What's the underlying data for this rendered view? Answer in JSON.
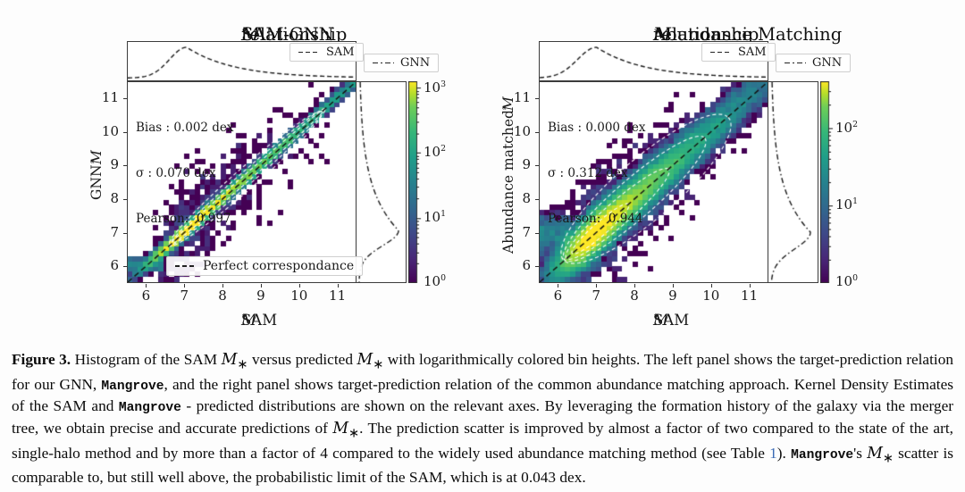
{
  "colors": {
    "link": "#3b6bb5",
    "viridis_low": "#440154",
    "viridis_high": "#fde725",
    "contour": "#ffffff",
    "line": "#141414"
  },
  "chart_data": [
    {
      "type": "heatmap",
      "title_segments": [
        {
          "t": "SAM-GNN ",
          "s": "n"
        },
        {
          "t": "M*",
          "s": "math"
        },
        {
          "t": " relationship",
          "s": "n"
        }
      ],
      "stats": {
        "bias": "Bias : 0.002 dex",
        "sigma": "σ : 0.070 dex",
        "pearson": "Pearson:  0.997"
      },
      "xlabel_segments": [
        {
          "t": "SAM ",
          "s": "n"
        },
        {
          "t": "M*",
          "s": "math"
        }
      ],
      "ylabel_segments": [
        {
          "t": "GNN ",
          "s": "n"
        },
        {
          "t": "M*",
          "s": "math"
        }
      ],
      "x_ticks": [
        6,
        7,
        8,
        9,
        10,
        11
      ],
      "y_ticks": [
        6,
        7,
        8,
        9,
        10,
        11
      ],
      "x_range": [
        5.5,
        11.5
      ],
      "y_range": [
        5.5,
        11.5
      ],
      "legends": {
        "top_marginal": "SAM",
        "right_marginal": "GNN",
        "main": "Perfect correspondance"
      },
      "colorbar": {
        "tick_exponents": [
          0,
          1,
          2,
          3
        ],
        "max_exp": 3.1
      },
      "model": {
        "seed": 11,
        "n": 52000,
        "peak": 7.05,
        "rise": 0.45,
        "tail": 1.25,
        "scatter": 0.07,
        "out_frac": 0.012,
        "out_scatter": 0.72,
        "floor": {
          "frac": 0.01,
          "x0": 5.5,
          "x1": 6.45,
          "y": 6.02,
          "sy": 0.1
        },
        "contours": [
          [
            8.65,
            2.9,
            0.1
          ],
          [
            8.65,
            2.9,
            0.19
          ],
          [
            8.6,
            2.85,
            0.3
          ]
        ]
      }
    },
    {
      "type": "heatmap",
      "title_segments": [
        {
          "t": "Abundance Matching ",
          "s": "n"
        },
        {
          "t": "M*",
          "s": "math"
        },
        {
          "t": " relationship",
          "s": "n"
        }
      ],
      "stats": {
        "bias": "Bias : 0.000 dex",
        "sigma": "σ : 0.312 dex",
        "pearson": "Pearson:  0.944"
      },
      "xlabel_segments": [
        {
          "t": "SAM ",
          "s": "n"
        },
        {
          "t": "M*",
          "s": "math"
        }
      ],
      "ylabel_segments": [
        {
          "t": "Abundance matched ",
          "s": "n"
        },
        {
          "t": "M*",
          "s": "math"
        }
      ],
      "x_ticks": [
        6,
        7,
        8,
        9,
        10,
        11
      ],
      "y_ticks": [
        6,
        7,
        8,
        9,
        10,
        11
      ],
      "x_range": [
        5.5,
        11.5
      ],
      "y_range": [
        5.5,
        11.5
      ],
      "legends": {
        "top_marginal": "SAM",
        "right_marginal": "GNN",
        "main": ""
      },
      "colorbar": {
        "tick_exponents": [
          0,
          1,
          2
        ],
        "max_exp": 2.6
      },
      "model": {
        "seed": 23,
        "n": 42000,
        "peak": 7.0,
        "rise": 0.5,
        "tail": 1.25,
        "scatter": 0.312,
        "out_frac": 0.03,
        "out_scatter": 0.85,
        "floor": {
          "frac": 0.015,
          "x0": 5.5,
          "x1": 6.35,
          "y": 6.95,
          "sy": 0.28
        },
        "contours": [
          [
            8.3,
            3.05,
            0.85
          ],
          [
            8.0,
            2.6,
            0.55
          ],
          [
            7.55,
            1.9,
            0.34
          ],
          [
            7.1,
            1.05,
            0.19
          ]
        ]
      }
    }
  ],
  "caption": {
    "segments": [
      {
        "t": "Figure 3.",
        "s": "bold"
      },
      {
        "t": " Histogram of the SAM ",
        "s": "n"
      },
      {
        "t": "M*",
        "s": "math"
      },
      {
        "t": " versus predicted ",
        "s": "n"
      },
      {
        "t": "M*",
        "s": "math"
      },
      {
        "t": " with logarithmically colored bin heights. The left panel shows the target-prediction relation for our GNN, ",
        "s": "n"
      },
      {
        "t": "Mangrove",
        "s": "mono"
      },
      {
        "t": ", and the right panel shows target-prediction relation of the common abundance matching approach. Kernel Density Estimates of the SAM and ",
        "s": "n"
      },
      {
        "t": "Mangrove",
        "s": "mono"
      },
      {
        "t": " - predicted distributions are shown on the relevant axes. By leveraging the formation history of the galaxy via the merger tree, we obtain precise and accurate predictions of ",
        "s": "n"
      },
      {
        "t": "M*",
        "s": "math"
      },
      {
        "t": ". The prediction scatter is improved by almost a factor of two compared to the state of the art, single-halo method and by more than a factor of 4 compared to the widely used abundance matching method (see Table ",
        "s": "n"
      },
      {
        "t": "1",
        "s": "link"
      },
      {
        "t": "). ",
        "s": "n"
      },
      {
        "t": "Mangrove",
        "s": "mono"
      },
      {
        "t": "'s ",
        "s": "n"
      },
      {
        "t": "M*",
        "s": "math"
      },
      {
        "t": " scatter is comparable to, but still well above, the probabilistic limit of the SAM, which is at 0.043 dex.",
        "s": "n"
      }
    ]
  }
}
